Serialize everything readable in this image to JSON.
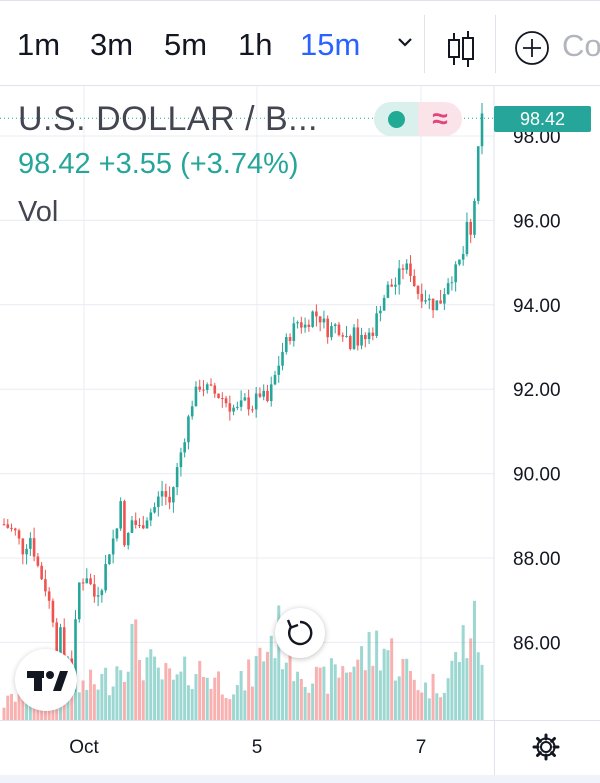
{
  "toolbar": {
    "timeframes": [
      {
        "label": "1m",
        "active": false
      },
      {
        "label": "3m",
        "active": false
      },
      {
        "label": "5m",
        "active": false
      },
      {
        "label": "1h",
        "active": false
      },
      {
        "label": "15m",
        "active": true
      }
    ],
    "dropdown_icon": "chevron-down-icon",
    "chart_type_icon": "candlestick-icon",
    "compare_icon": "plus-circle-icon",
    "compare_label": "Co"
  },
  "legend": {
    "symbol": "U.S. DOLLAR / B...",
    "price_line": "98.42 +3.55 (+3.74%)",
    "volume_label": "Vol",
    "status_icon": "market-open-dot-icon",
    "delay_icon": "delayed-data-icon",
    "delay_glyph": "≈"
  },
  "price_axis": {
    "current_price": "98.42",
    "ticks": [
      "98.00",
      "96.00",
      "94.00",
      "92.00",
      "90.00",
      "88.00",
      "86.00"
    ]
  },
  "time_axis": {
    "labels": [
      "Oct",
      "5",
      "7"
    ],
    "settings_icon": "gear-icon"
  },
  "controls": {
    "reset_icon": "reset-rotate-icon",
    "logo_icon": "tradingview-logo-icon"
  },
  "colors": {
    "up": "#26a69a",
    "down": "#ef5350",
    "active_timeframe": "#2962ff",
    "grid": "#e9ecf2"
  },
  "chart_data": {
    "type": "candlestick",
    "ylim": [
      84.5,
      98.6
    ],
    "ohlc_path": [
      [
        0,
        88.8
      ],
      [
        3,
        88.6
      ],
      [
        5,
        88.2
      ],
      [
        7,
        88.5
      ],
      [
        9,
        87.8
      ],
      [
        11,
        87.3
      ],
      [
        13,
        86.6
      ],
      [
        14,
        85.8
      ],
      [
        15,
        86.2
      ],
      [
        16,
        85.3
      ],
      [
        17,
        85.7
      ],
      [
        18,
        85.1
      ],
      [
        19,
        86.4
      ],
      [
        20,
        87.4
      ],
      [
        22,
        87.6
      ],
      [
        24,
        87.1
      ],
      [
        26,
        87.4
      ],
      [
        28,
        88.2
      ],
      [
        30,
        88.7
      ],
      [
        31,
        89.5
      ],
      [
        32,
        88.2
      ],
      [
        34,
        88.9
      ],
      [
        36,
        88.7
      ],
      [
        38,
        89.0
      ],
      [
        40,
        89.2
      ],
      [
        42,
        89.6
      ],
      [
        44,
        89.3
      ],
      [
        46,
        90.1
      ],
      [
        48,
        90.9
      ],
      [
        50,
        91.7
      ],
      [
        52,
        92.1
      ],
      [
        54,
        92.0
      ],
      [
        56,
        91.9
      ],
      [
        58,
        91.8
      ],
      [
        60,
        91.6
      ],
      [
        62,
        91.5
      ],
      [
        64,
        91.7
      ],
      [
        66,
        91.6
      ],
      [
        68,
        91.9
      ],
      [
        70,
        91.7
      ],
      [
        72,
        92.3
      ],
      [
        74,
        92.9
      ],
      [
        76,
        93.3
      ],
      [
        78,
        93.6
      ],
      [
        80,
        93.5
      ],
      [
        82,
        93.8
      ],
      [
        84,
        93.7
      ],
      [
        86,
        93.4
      ],
      [
        88,
        93.5
      ],
      [
        90,
        93.4
      ],
      [
        92,
        93.1
      ],
      [
        93,
        93.6
      ],
      [
        94,
        93.1
      ],
      [
        96,
        93.2
      ],
      [
        98,
        93.4
      ],
      [
        100,
        94.0
      ],
      [
        102,
        94.4
      ],
      [
        104,
        94.5
      ],
      [
        106,
        94.9
      ],
      [
        108,
        94.8
      ],
      [
        109,
        94.5
      ],
      [
        110,
        94.3
      ],
      [
        112,
        94.2
      ],
      [
        114,
        94.0
      ],
      [
        116,
        94.1
      ],
      [
        118,
        94.6
      ],
      [
        120,
        94.8
      ],
      [
        122,
        95.2
      ],
      [
        123,
        95.8
      ],
      [
        124,
        95.6
      ],
      [
        125,
        96.5
      ],
      [
        126,
        97.6
      ],
      [
        127,
        98.42
      ]
    ],
    "volume_peaks": [
      [
        0,
        0.15
      ],
      [
        8,
        0.35
      ],
      [
        14,
        0.55
      ],
      [
        20,
        0.3
      ],
      [
        28,
        0.4
      ],
      [
        34,
        0.75
      ],
      [
        40,
        0.45
      ],
      [
        46,
        0.35
      ],
      [
        50,
        0.5
      ],
      [
        56,
        0.4
      ],
      [
        62,
        0.3
      ],
      [
        66,
        0.45
      ],
      [
        72,
        0.85
      ],
      [
        78,
        0.55
      ],
      [
        84,
        0.35
      ],
      [
        90,
        0.5
      ],
      [
        96,
        0.6
      ],
      [
        100,
        0.75
      ],
      [
        106,
        0.5
      ],
      [
        112,
        0.3
      ],
      [
        118,
        0.4
      ],
      [
        124,
        0.9
      ],
      [
        127,
        0.7
      ]
    ]
  }
}
